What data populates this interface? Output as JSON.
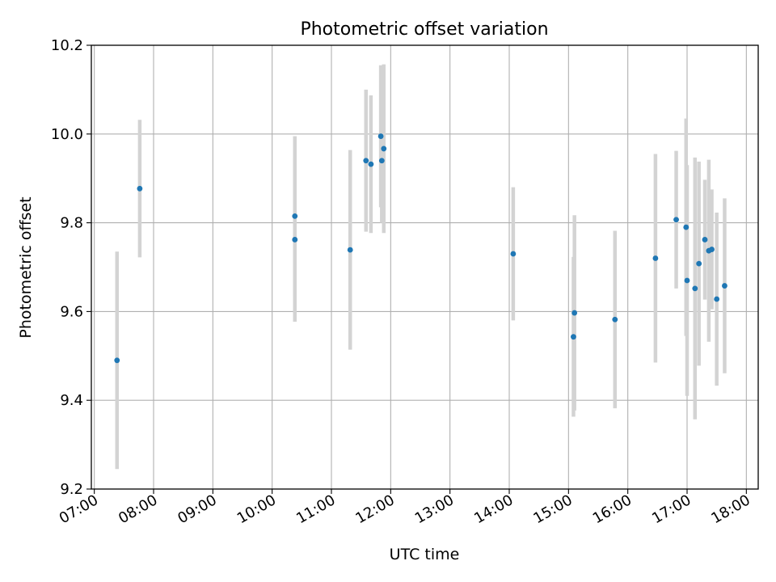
{
  "chart_data": {
    "type": "scatter",
    "title": "Photometric offset variation",
    "xlabel": "UTC time",
    "ylabel": "Photometric offset",
    "xlim": [
      "06:57",
      "18:12"
    ],
    "ylim": [
      9.2,
      10.2
    ],
    "xticks": [
      "07:00",
      "08:00",
      "09:00",
      "10:00",
      "11:00",
      "12:00",
      "13:00",
      "14:00",
      "15:00",
      "16:00",
      "17:00",
      "18:00"
    ],
    "yticks": [
      "9.2",
      "9.4",
      "9.6",
      "9.8",
      "10.0",
      "10.2"
    ],
    "grid": true,
    "marker_color": "#1f77b4",
    "errorbar_color": "#d3d3d3",
    "series": [
      {
        "points": [
          {
            "x": "07:23",
            "y": 9.49,
            "err": 0.245
          },
          {
            "x": "07:46",
            "y": 9.877,
            "err": 0.155
          },
          {
            "x": "10:23",
            "y": 9.762,
            "err": 0.185
          },
          {
            "x": "10:23",
            "y": 9.815,
            "err": 0.18
          },
          {
            "x": "11:19",
            "y": 9.739,
            "err": 0.225
          },
          {
            "x": "11:35",
            "y": 9.94,
            "err": 0.16
          },
          {
            "x": "11:40",
            "y": 9.932,
            "err": 0.155
          },
          {
            "x": "11:50",
            "y": 9.995,
            "err": 0.16
          },
          {
            "x": "11:51",
            "y": 9.94,
            "err": 0.14
          },
          {
            "x": "11:53",
            "y": 9.967,
            "err": 0.19
          },
          {
            "x": "14:04",
            "y": 9.73,
            "err": 0.15
          },
          {
            "x": "15:05",
            "y": 9.543,
            "err": 0.18
          },
          {
            "x": "15:06",
            "y": 9.597,
            "err": 0.22
          },
          {
            "x": "15:47",
            "y": 9.582,
            "err": 0.2
          },
          {
            "x": "16:28",
            "y": 9.72,
            "err": 0.235
          },
          {
            "x": "16:49",
            "y": 9.807,
            "err": 0.155
          },
          {
            "x": "16:59",
            "y": 9.79,
            "err": 0.245
          },
          {
            "x": "17:00",
            "y": 9.67,
            "err": 0.26
          },
          {
            "x": "17:08",
            "y": 9.652,
            "err": 0.295
          },
          {
            "x": "17:12",
            "y": 9.708,
            "err": 0.23
          },
          {
            "x": "17:18",
            "y": 9.762,
            "err": 0.135
          },
          {
            "x": "17:22",
            "y": 9.737,
            "err": 0.205
          },
          {
            "x": "17:25",
            "y": 9.74,
            "err": 0.135
          },
          {
            "x": "17:30",
            "y": 9.628,
            "err": 0.195
          },
          {
            "x": "17:38",
            "y": 9.658,
            "err": 0.197
          }
        ]
      }
    ]
  }
}
